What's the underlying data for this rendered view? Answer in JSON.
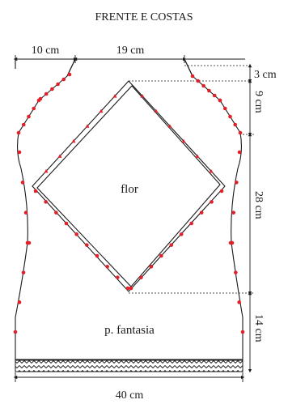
{
  "title": "FRENTE E COSTAS",
  "labels": {
    "flower": "flor",
    "fancy_stitch": "p. fantasia"
  },
  "dimensions": {
    "shoulder": "10 cm",
    "neck": "19 cm",
    "neck_drop": "3 cm",
    "flower_top": "9 cm",
    "flower_height": "28 cm",
    "bottom": "14 cm",
    "width": "40 cm"
  },
  "colors": {
    "outline": "#1a1a1a",
    "decrease_marker": "#e0202a"
  }
}
